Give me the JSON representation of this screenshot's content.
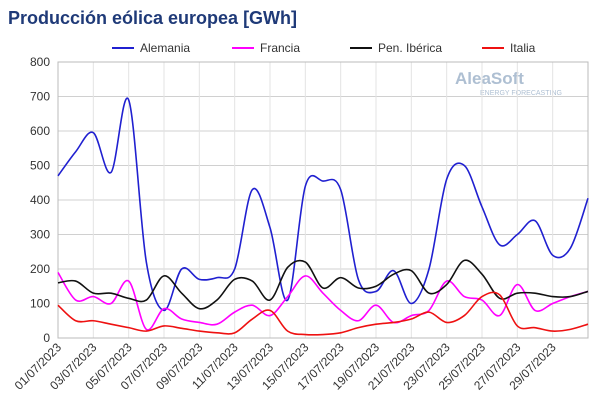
{
  "chart_data": {
    "type": "line",
    "title": "Producción eólica europea [GWh]",
    "watermark": {
      "brand": "AleaSoft",
      "tagline": "ENERGY FORECASTING"
    },
    "categories": [
      "01/07/2023",
      null,
      "03/07/2023",
      null,
      "05/07/2023",
      null,
      "07/07/2023",
      null,
      "09/07/2023",
      null,
      "11/07/2023",
      null,
      "13/07/2023",
      null,
      "15/07/2023",
      null,
      "17/07/2023",
      null,
      "19/07/2023",
      null,
      "21/07/2023",
      null,
      "23/07/2023",
      null,
      "25/07/2023",
      null,
      "27/07/2023",
      null,
      "29/07/2023",
      null,
      null
    ],
    "series": [
      {
        "name": "Alemania",
        "color": "#2020d0",
        "values": [
          470,
          540,
          595,
          480,
          690,
          220,
          80,
          200,
          170,
          175,
          200,
          430,
          320,
          110,
          440,
          455,
          430,
          170,
          135,
          195,
          100,
          200,
          460,
          500,
          380,
          270,
          300,
          340,
          240,
          260,
          405
        ]
      },
      {
        "name": "Francia",
        "color": "#ff00ff",
        "values": [
          190,
          110,
          120,
          100,
          165,
          25,
          85,
          55,
          45,
          40,
          75,
          95,
          65,
          120,
          180,
          130,
          80,
          50,
          95,
          45,
          65,
          80,
          165,
          120,
          110,
          65,
          155,
          80,
          100,
          120,
          135
        ]
      },
      {
        "name": "Pen. Ibérica",
        "color": "#111111",
        "values": [
          160,
          165,
          130,
          130,
          115,
          110,
          180,
          130,
          85,
          110,
          170,
          165,
          110,
          205,
          220,
          145,
          175,
          145,
          150,
          185,
          195,
          130,
          155,
          225,
          185,
          115,
          130,
          130,
          120,
          120,
          135
        ]
      },
      {
        "name": "Italia",
        "color": "#ee1111",
        "values": [
          95,
          50,
          50,
          40,
          30,
          20,
          35,
          28,
          20,
          15,
          15,
          55,
          80,
          20,
          10,
          10,
          15,
          30,
          40,
          45,
          55,
          75,
          45,
          65,
          120,
          125,
          35,
          30,
          20,
          25,
          40
        ]
      }
    ],
    "ylim": [
      0,
      800
    ],
    "yticks": [
      0,
      100,
      200,
      300,
      400,
      500,
      600,
      700,
      800
    ],
    "grid": true,
    "legend": "top"
  }
}
